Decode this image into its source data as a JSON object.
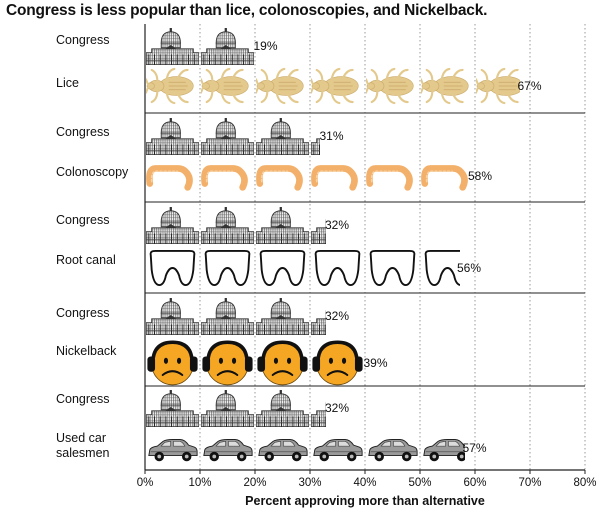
{
  "chart_data": {
    "type": "bar",
    "title": "Congress is less popular than lice, colonoscopies, and Nickelback.",
    "xlabel": "Percent approving more than alternative",
    "xlim": [
      0,
      80
    ],
    "xticks": [
      "0%",
      "10%",
      "20%",
      "30%",
      "40%",
      "50%",
      "60%",
      "70%",
      "80%"
    ],
    "grid": "vertical dotted",
    "groups": [
      {
        "rows": [
          {
            "label": [
              "Congress"
            ],
            "value": 19,
            "value_label": "19%",
            "icon": "capitol-icon"
          },
          {
            "label": [
              "Lice"
            ],
            "value": 67,
            "value_label": "67%",
            "icon": "louse-icon"
          }
        ]
      },
      {
        "rows": [
          {
            "label": [
              "Congress"
            ],
            "value": 31,
            "value_label": "31%",
            "icon": "capitol-icon"
          },
          {
            "label": [
              "Colonoscopy"
            ],
            "value": 58,
            "value_label": "58%",
            "icon": "colon-icon"
          }
        ]
      },
      {
        "rows": [
          {
            "label": [
              "Congress"
            ],
            "value": 32,
            "value_label": "32%",
            "icon": "capitol-icon"
          },
          {
            "label": [
              "Root canal"
            ],
            "value": 56,
            "value_label": "56%",
            "icon": "tooth-icon"
          }
        ]
      },
      {
        "rows": [
          {
            "label": [
              "Congress"
            ],
            "value": 32,
            "value_label": "32%",
            "icon": "capitol-icon"
          },
          {
            "label": [
              "Nickelback"
            ],
            "value": 39,
            "value_label": "39%",
            "icon": "sad-face-headphones-icon"
          }
        ]
      },
      {
        "rows": [
          {
            "label": [
              "Congress"
            ],
            "value": 32,
            "value_label": "32%",
            "icon": "capitol-icon"
          },
          {
            "label": [
              "Used car",
              "salesmen"
            ],
            "value": 57,
            "value_label": "57%",
            "icon": "car-icon"
          }
        ]
      }
    ],
    "colors": {
      "louse": "#e3c98c",
      "colon": "#f2b06a",
      "face": "#f5a623",
      "capitol": "#555555"
    }
  }
}
